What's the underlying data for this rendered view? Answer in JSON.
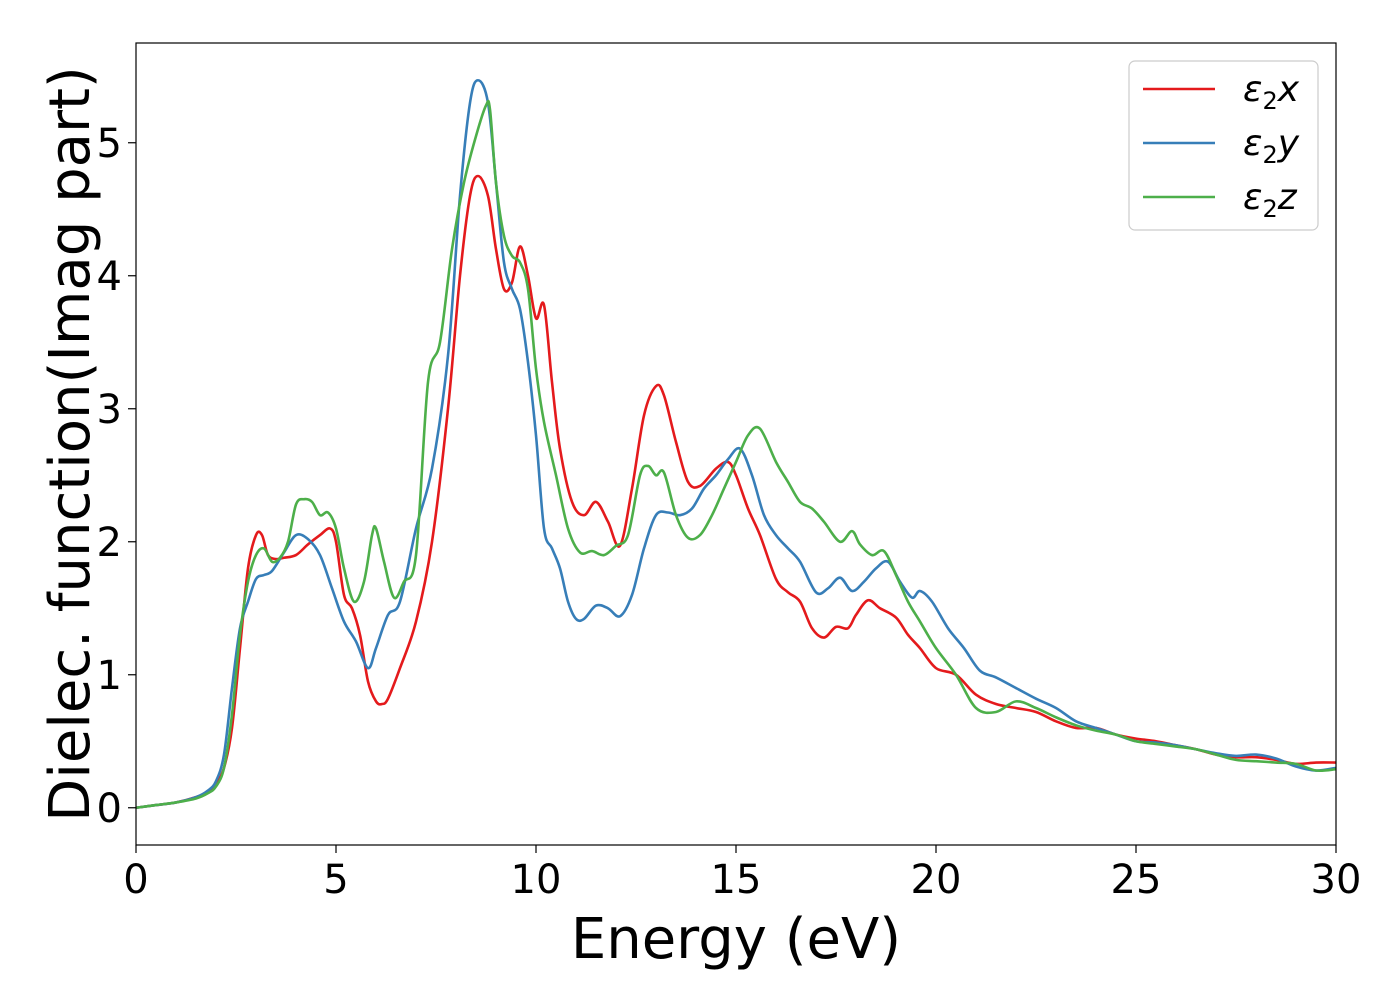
{
  "chart_data": {
    "type": "line",
    "xlabel": "Energy (eV)",
    "ylabel": "Dielec. function(Imag part)",
    "xlim": [
      0,
      30
    ],
    "ylim": [
      -0.28,
      5.75
    ],
    "xticks": [
      0,
      5,
      10,
      15,
      20,
      25,
      30
    ],
    "yticks": [
      0,
      1,
      2,
      3,
      4,
      5
    ],
    "grid": false,
    "legend_position": "top-right",
    "series": [
      {
        "name": "ε2x",
        "color": "#e41a1c",
        "x": [
          0,
          0.5,
          1,
          1.5,
          1.8,
          2,
          2.2,
          2.4,
          2.6,
          2.8,
          3.0,
          3.15,
          3.3,
          3.5,
          3.7,
          4.0,
          4.3,
          4.6,
          4.85,
          5.0,
          5.2,
          5.4,
          5.6,
          5.8,
          6.0,
          6.15,
          6.3,
          6.6,
          7.0,
          7.4,
          7.8,
          8.1,
          8.35,
          8.55,
          8.8,
          9.0,
          9.2,
          9.4,
          9.6,
          9.8,
          10.0,
          10.2,
          10.4,
          10.6,
          10.9,
          11.2,
          11.5,
          11.8,
          12.1,
          12.4,
          12.7,
          13.0,
          13.2,
          13.5,
          13.8,
          14.1,
          14.5,
          14.8,
          15.0,
          15.3,
          15.6,
          16.0,
          16.3,
          16.6,
          16.9,
          17.2,
          17.5,
          17.8,
          18.0,
          18.3,
          18.6,
          19.0,
          19.3,
          19.6,
          20.0,
          20.5,
          21.0,
          21.5,
          22.0,
          22.5,
          23.0,
          23.5,
          24.0,
          24.5,
          25.0,
          25.5,
          26.0,
          26.5,
          27.0,
          27.5,
          28.0,
          28.5,
          29.0,
          29.5,
          30.0
        ],
        "y": [
          0.0,
          0.02,
          0.04,
          0.08,
          0.12,
          0.18,
          0.3,
          0.6,
          1.2,
          1.8,
          2.05,
          2.05,
          1.9,
          1.87,
          1.88,
          1.9,
          1.98,
          2.05,
          2.1,
          2.0,
          1.6,
          1.5,
          1.3,
          0.95,
          0.8,
          0.78,
          0.82,
          1.05,
          1.4,
          2.0,
          3.0,
          4.0,
          4.6,
          4.75,
          4.6,
          4.2,
          3.9,
          3.95,
          4.22,
          4.0,
          3.68,
          3.78,
          3.2,
          2.7,
          2.3,
          2.2,
          2.3,
          2.15,
          1.97,
          2.4,
          2.95,
          3.17,
          3.1,
          2.75,
          2.45,
          2.42,
          2.55,
          2.6,
          2.5,
          2.25,
          2.05,
          1.72,
          1.62,
          1.55,
          1.35,
          1.28,
          1.36,
          1.35,
          1.45,
          1.56,
          1.5,
          1.43,
          1.3,
          1.2,
          1.05,
          1.0,
          0.85,
          0.78,
          0.75,
          0.72,
          0.65,
          0.6,
          0.6,
          0.55,
          0.52,
          0.5,
          0.47,
          0.44,
          0.4,
          0.38,
          0.38,
          0.36,
          0.33,
          0.34,
          0.34
        ]
      },
      {
        "name": "ε2y",
        "color": "#377eb8",
        "x": [
          0,
          0.5,
          1,
          1.5,
          1.8,
          2,
          2.2,
          2.4,
          2.6,
          2.8,
          3.0,
          3.2,
          3.4,
          3.7,
          4.0,
          4.3,
          4.6,
          4.9,
          5.2,
          5.5,
          5.8,
          6.0,
          6.3,
          6.6,
          7.0,
          7.4,
          7.8,
          8.1,
          8.35,
          8.55,
          8.8,
          9.0,
          9.2,
          9.4,
          9.6,
          9.8,
          10.0,
          10.2,
          10.4,
          10.6,
          10.8,
          11.0,
          11.2,
          11.5,
          11.8,
          12.1,
          12.4,
          12.7,
          13.0,
          13.3,
          13.6,
          13.9,
          14.2,
          14.5,
          14.8,
          15.1,
          15.4,
          15.7,
          16.0,
          16.3,
          16.6,
          17.0,
          17.3,
          17.6,
          17.9,
          18.2,
          18.5,
          18.8,
          19.1,
          19.4,
          19.6,
          19.9,
          20.3,
          20.7,
          21.1,
          21.5,
          22.0,
          22.5,
          23.0,
          23.5,
          24.0,
          24.5,
          25.0,
          25.5,
          26.0,
          26.5,
          27.0,
          27.5,
          28.0,
          28.5,
          29.0,
          29.5,
          30.0
        ],
        "y": [
          0.0,
          0.02,
          0.04,
          0.08,
          0.13,
          0.2,
          0.4,
          0.9,
          1.35,
          1.55,
          1.72,
          1.75,
          1.78,
          1.92,
          2.05,
          2.02,
          1.9,
          1.65,
          1.4,
          1.25,
          1.05,
          1.2,
          1.45,
          1.55,
          2.1,
          2.55,
          3.4,
          4.6,
          5.3,
          5.47,
          5.3,
          4.7,
          4.1,
          3.9,
          3.75,
          3.35,
          2.8,
          2.1,
          1.95,
          1.8,
          1.55,
          1.42,
          1.42,
          1.52,
          1.5,
          1.44,
          1.6,
          1.95,
          2.2,
          2.22,
          2.2,
          2.25,
          2.4,
          2.5,
          2.62,
          2.7,
          2.5,
          2.2,
          2.05,
          1.95,
          1.85,
          1.62,
          1.65,
          1.73,
          1.63,
          1.7,
          1.8,
          1.85,
          1.7,
          1.58,
          1.63,
          1.55,
          1.35,
          1.2,
          1.03,
          0.98,
          0.9,
          0.82,
          0.75,
          0.65,
          0.6,
          0.55,
          0.5,
          0.49,
          0.47,
          0.44,
          0.41,
          0.39,
          0.4,
          0.37,
          0.31,
          0.28,
          0.3
        ]
      },
      {
        "name": "ε2z",
        "color": "#4daf4a",
        "x": [
          0,
          0.5,
          1,
          1.5,
          1.8,
          2,
          2.2,
          2.4,
          2.6,
          2.8,
          3.0,
          3.2,
          3.4,
          3.6,
          3.8,
          4.0,
          4.2,
          4.4,
          4.6,
          4.8,
          5.0,
          5.2,
          5.45,
          5.7,
          5.9,
          6.0,
          6.2,
          6.45,
          6.7,
          7.0,
          7.3,
          7.6,
          7.9,
          8.2,
          8.5,
          8.75,
          8.85,
          9.0,
          9.2,
          9.4,
          9.6,
          9.8,
          10.0,
          10.2,
          10.5,
          10.8,
          11.1,
          11.4,
          11.7,
          12.0,
          12.3,
          12.6,
          12.8,
          13.0,
          13.2,
          13.5,
          13.8,
          14.1,
          14.4,
          14.7,
          15.0,
          15.3,
          15.6,
          16.0,
          16.3,
          16.6,
          16.9,
          17.2,
          17.6,
          17.9,
          18.1,
          18.4,
          18.7,
          19.0,
          19.3,
          19.6,
          20.0,
          20.5,
          21.0,
          21.5,
          22.0,
          22.5,
          23.0,
          23.5,
          24.0,
          24.5,
          25.0,
          25.5,
          26.0,
          26.5,
          27.0,
          27.5,
          28.0,
          28.5,
          29.0,
          29.5,
          30.0
        ],
        "y": [
          0.0,
          0.02,
          0.04,
          0.07,
          0.11,
          0.16,
          0.3,
          0.7,
          1.3,
          1.7,
          1.9,
          1.95,
          1.85,
          1.88,
          2.0,
          2.28,
          2.32,
          2.3,
          2.2,
          2.22,
          2.1,
          1.8,
          1.55,
          1.7,
          2.05,
          2.1,
          1.85,
          1.58,
          1.7,
          1.9,
          3.2,
          3.5,
          4.2,
          4.7,
          5.05,
          5.28,
          5.25,
          4.7,
          4.3,
          4.15,
          4.1,
          3.9,
          3.3,
          2.9,
          2.5,
          2.1,
          1.92,
          1.93,
          1.9,
          1.97,
          2.05,
          2.5,
          2.57,
          2.5,
          2.52,
          2.2,
          2.03,
          2.05,
          2.2,
          2.4,
          2.6,
          2.8,
          2.85,
          2.6,
          2.45,
          2.3,
          2.25,
          2.15,
          2.0,
          2.08,
          1.98,
          1.9,
          1.93,
          1.75,
          1.55,
          1.4,
          1.2,
          1.0,
          0.75,
          0.72,
          0.8,
          0.75,
          0.68,
          0.62,
          0.58,
          0.55,
          0.5,
          0.48,
          0.46,
          0.44,
          0.4,
          0.36,
          0.35,
          0.34,
          0.33,
          0.28,
          0.29
        ]
      }
    ]
  }
}
